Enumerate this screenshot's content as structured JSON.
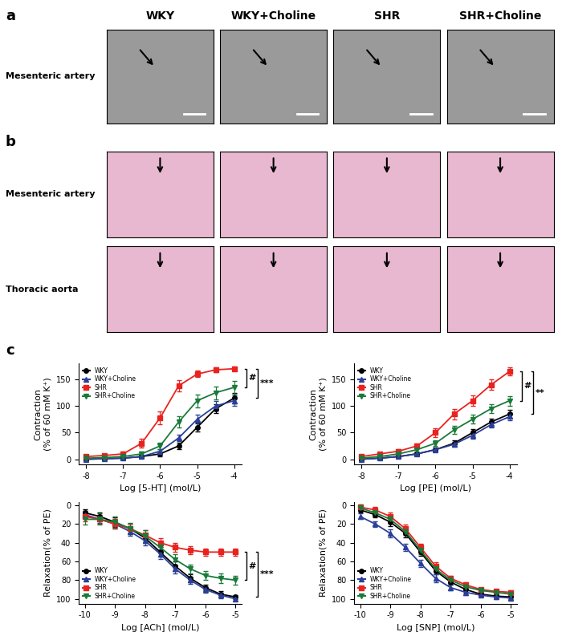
{
  "image_panels": [
    {
      "label": "a",
      "columns": [
        "WKY",
        "WKY+Choline",
        "SHR",
        "SHR+Choline"
      ],
      "rows": [
        "Mesenteric artery"
      ]
    },
    {
      "label": "b",
      "rows": [
        "Mesenteric artery",
        "Thoracic aorta"
      ]
    }
  ],
  "chart_panel_label": "c",
  "chart_data": [
    {
      "type": "line",
      "xlabel": "Log [5-HT] (mol/L)",
      "ylabel": "Contraction\n(% of 60 mM K⁺)",
      "x": [
        -8,
        -7.5,
        -7,
        -6.5,
        -6,
        -5.5,
        -5,
        -4.5,
        -4
      ],
      "xlim": [
        -8.2,
        -3.8
      ],
      "xticks": [
        -8,
        -7,
        -6,
        -5,
        -4
      ],
      "ylim": [
        -10,
        180
      ],
      "yticks": [
        0,
        50,
        100,
        150
      ],
      "legend": "upper left",
      "annotations": [
        "#",
        "***"
      ],
      "series": [
        {
          "name": "WKY",
          "color": "#000000",
          "marker": "circle",
          "line_style": "solid",
          "values": [
            0,
            1,
            2,
            5,
            10,
            25,
            60,
            95,
            115
          ],
          "errors": [
            2,
            2,
            2,
            3,
            4,
            6,
            8,
            9,
            10
          ]
        },
        {
          "name": "WKY+Choline",
          "color": "#2b3f99",
          "marker": "triangle_up",
          "line_style": "solid",
          "values": [
            0,
            1,
            2,
            5,
            15,
            40,
            75,
            100,
            110
          ],
          "errors": [
            2,
            2,
            2,
            3,
            4,
            6,
            8,
            9,
            10
          ]
        },
        {
          "name": "SHR",
          "color": "#e8231f",
          "marker": "square",
          "line_style": "solid",
          "values": [
            5,
            7,
            10,
            30,
            78,
            138,
            160,
            168,
            170
          ],
          "errors": [
            3,
            3,
            4,
            8,
            12,
            10,
            6,
            5,
            4
          ]
        },
        {
          "name": "SHR+Choline",
          "color": "#1a7a3a",
          "marker": "triangle_down",
          "line_style": "solid",
          "values": [
            2,
            3,
            5,
            10,
            25,
            70,
            110,
            125,
            135
          ],
          "errors": [
            2,
            2,
            3,
            4,
            6,
            10,
            12,
            12,
            12
          ]
        }
      ]
    },
    {
      "type": "line",
      "xlabel": "Log [PE] (mol/L)",
      "ylabel": "Contraction\n(% of 60 mM K⁺)",
      "x": [
        -8,
        -7.5,
        -7,
        -6.5,
        -6,
        -5.5,
        -5,
        -4.5,
        -4
      ],
      "xlim": [
        -8.2,
        -3.8
      ],
      "xticks": [
        -8,
        -7,
        -6,
        -5,
        -4
      ],
      "ylim": [
        -10,
        180
      ],
      "yticks": [
        0,
        50,
        100,
        150
      ],
      "legend": "upper left",
      "annotations": [
        "#",
        "**"
      ],
      "series": [
        {
          "name": "WKY",
          "color": "#000000",
          "marker": "circle",
          "line_style": "solid",
          "values": [
            0,
            2,
            5,
            10,
            18,
            30,
            50,
            70,
            85
          ],
          "errors": [
            2,
            2,
            2,
            3,
            4,
            5,
            6,
            6,
            7
          ]
        },
        {
          "name": "WKY+Choline",
          "color": "#2b3f99",
          "marker": "triangle_up",
          "line_style": "solid",
          "values": [
            0,
            2,
            5,
            10,
            18,
            28,
            45,
            65,
            80
          ],
          "errors": [
            2,
            2,
            2,
            3,
            4,
            5,
            6,
            6,
            7
          ]
        },
        {
          "name": "SHR",
          "color": "#e8231f",
          "marker": "square",
          "line_style": "solid",
          "values": [
            5,
            10,
            15,
            25,
            50,
            85,
            110,
            140,
            165
          ],
          "errors": [
            3,
            3,
            4,
            5,
            8,
            10,
            10,
            10,
            8
          ]
        },
        {
          "name": "SHR+Choline",
          "color": "#1a7a3a",
          "marker": "triangle_down",
          "line_style": "solid",
          "values": [
            2,
            5,
            10,
            18,
            30,
            55,
            75,
            95,
            110
          ],
          "errors": [
            2,
            2,
            3,
            4,
            5,
            7,
            8,
            8,
            9
          ]
        }
      ]
    },
    {
      "type": "line",
      "xlabel": "Log [ACh] (mol/L)",
      "ylabel": "Relaxation(% of PE)",
      "x": [
        -10,
        -9.5,
        -9,
        -8.5,
        -8,
        -7.5,
        -7,
        -6.5,
        -6,
        -5.5,
        -5
      ],
      "xlim": [
        -10.2,
        -4.8
      ],
      "xticks": [
        -10,
        -9,
        -8,
        -7,
        -6,
        -5
      ],
      "ylim": [
        105,
        -3
      ],
      "yticks": [
        0,
        20,
        40,
        60,
        80,
        100
      ],
      "legend": "lower left",
      "annotations": [
        "#",
        "***"
      ],
      "series": [
        {
          "name": "WKY",
          "color": "#000000",
          "marker": "circle",
          "line_style": "solid",
          "values": [
            8,
            12,
            18,
            25,
            35,
            50,
            65,
            78,
            88,
            95,
            98
          ],
          "errors": [
            4,
            4,
            5,
            5,
            5,
            5,
            5,
            4,
            3,
            3,
            2
          ]
        },
        {
          "name": "WKY+Choline",
          "color": "#2b3f99",
          "marker": "triangle_up",
          "line_style": "solid",
          "values": [
            10,
            15,
            20,
            28,
            38,
            52,
            68,
            80,
            90,
            96,
            100
          ],
          "errors": [
            4,
            4,
            5,
            5,
            5,
            5,
            5,
            4,
            3,
            3,
            2
          ]
        },
        {
          "name": "SHR",
          "color": "#e8231f",
          "marker": "square",
          "line_style": "solid",
          "values": [
            12,
            15,
            20,
            25,
            32,
            40,
            45,
            48,
            50,
            50,
            50
          ],
          "errors": [
            5,
            5,
            5,
            5,
            5,
            5,
            5,
            4,
            4,
            4,
            4
          ]
        },
        {
          "name": "SHR+Choline",
          "color": "#1a7a3a",
          "marker": "triangle_down",
          "line_style": "solid",
          "values": [
            15,
            15,
            18,
            25,
            33,
            45,
            58,
            68,
            75,
            78,
            80
          ],
          "errors": [
            6,
            6,
            6,
            6,
            6,
            6,
            6,
            5,
            5,
            5,
            5
          ]
        }
      ]
    },
    {
      "type": "line",
      "xlabel": "Log [SNP] (mol/L)",
      "ylabel": "Relaxation(% of PE)",
      "x": [
        -10,
        -9.5,
        -9,
        -8.5,
        -8,
        -7.5,
        -7,
        -6.5,
        -6,
        -5.5,
        -5
      ],
      "xlim": [
        -10.2,
        -4.8
      ],
      "xticks": [
        -10,
        -9,
        -8,
        -7,
        -6,
        -5
      ],
      "ylim": [
        105,
        -3
      ],
      "yticks": [
        0,
        20,
        40,
        60,
        80,
        100
      ],
      "legend": "lower left",
      "annotations": [],
      "series": [
        {
          "name": "WKY",
          "color": "#000000",
          "marker": "circle",
          "line_style": "solid",
          "values": [
            5,
            10,
            18,
            30,
            50,
            70,
            82,
            90,
            95,
            97,
            98
          ],
          "errors": [
            3,
            3,
            4,
            4,
            4,
            4,
            3,
            3,
            2,
            2,
            2
          ]
        },
        {
          "name": "WKY+Choline",
          "color": "#2b3f99",
          "marker": "triangle_up",
          "line_style": "solid",
          "values": [
            12,
            20,
            30,
            45,
            62,
            78,
            88,
            93,
            96,
            98,
            99
          ],
          "errors": [
            3,
            3,
            4,
            4,
            4,
            4,
            3,
            3,
            2,
            2,
            2
          ]
        },
        {
          "name": "SHR",
          "color": "#e8231f",
          "marker": "square",
          "line_style": "solid",
          "values": [
            2,
            5,
            12,
            25,
            45,
            65,
            78,
            85,
            90,
            92,
            93
          ],
          "errors": [
            3,
            3,
            4,
            4,
            4,
            4,
            3,
            3,
            2,
            2,
            2
          ]
        },
        {
          "name": "SHR+Choline",
          "color": "#1a7a3a",
          "marker": "triangle_down",
          "line_style": "solid",
          "values": [
            3,
            8,
            15,
            28,
            48,
            68,
            80,
            87,
            91,
            93,
            95
          ],
          "errors": [
            3,
            3,
            4,
            4,
            4,
            4,
            3,
            3,
            2,
            2,
            2
          ]
        }
      ]
    }
  ]
}
